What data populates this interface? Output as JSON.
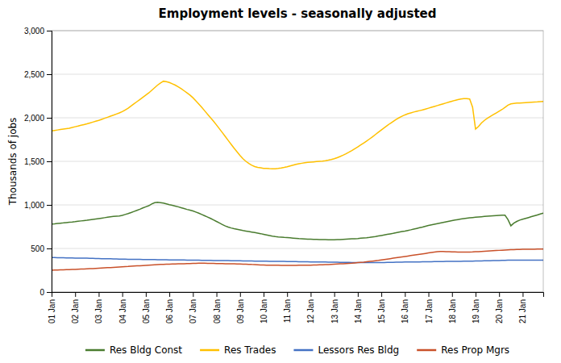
{
  "chart_data": {
    "type": "line",
    "title": "Employment levels - seasonally adjusted",
    "ylabel": "Thousands of jobs",
    "categories": [
      "01 Jan",
      null,
      null,
      null,
      null,
      null,
      null,
      null,
      "02 Jan",
      null,
      null,
      null,
      null,
      null,
      null,
      null,
      "03 Jan",
      null,
      null,
      null,
      null,
      null,
      null,
      null,
      "04 Jan",
      null,
      null,
      null,
      null,
      null,
      null,
      null,
      "05 Jan",
      null,
      null,
      null,
      null,
      null,
      null,
      null,
      "06 Jan",
      null,
      null,
      null,
      null,
      null,
      null,
      null,
      "07 Jan",
      null,
      null,
      null,
      null,
      null,
      null,
      null,
      "08 Jan",
      null,
      null,
      null,
      null,
      null,
      null,
      null,
      "09 Jan",
      null,
      null,
      null,
      null,
      null,
      null,
      null,
      "10 Jan",
      null,
      null,
      null,
      null,
      null,
      null,
      null,
      "11 Jan",
      null,
      null,
      null,
      null,
      null,
      null,
      null,
      "12 Jan",
      null,
      null,
      null,
      null,
      null,
      null,
      null,
      "13 Jan",
      null,
      null,
      null,
      null,
      null,
      null,
      null,
      "14 Jan",
      null,
      null,
      null,
      null,
      null,
      null,
      null,
      "15 Jan",
      null,
      null,
      null,
      null,
      null,
      null,
      null,
      "16 Jan",
      null,
      null,
      null,
      null,
      null,
      null,
      null,
      "17 Jan",
      null,
      null,
      null,
      null,
      null,
      null,
      null,
      "18 Jan",
      null,
      null,
      null,
      null,
      null,
      null,
      null,
      "19 Jan",
      null,
      null,
      null,
      null,
      null,
      null,
      null,
      "20 Jan",
      null,
      null,
      null,
      null,
      null,
      null,
      null,
      "21 Jan",
      null,
      null,
      null,
      null,
      null,
      null,
      null
    ],
    "ylim": [
      0,
      3000
    ],
    "yticks": [
      0,
      500,
      {
        "value": 1000,
        "label": "1,000"
      },
      {
        "value": 1500,
        "label": "1,500"
      },
      {
        "value": 2000,
        "label": "2,000"
      },
      {
        "value": 2500,
        "label": "2,500"
      },
      {
        "value": 3000,
        "label": "3,000"
      }
    ],
    "grid": true,
    "legend": "bottom",
    "series": [
      {
        "name": "Res Bldg Const",
        "color": "#4a7c2f",
        "values": [
          780,
          783,
          787,
          790,
          793,
          797,
          800,
          803,
          807,
          812,
          816,
          820,
          823,
          828,
          833,
          838,
          843,
          848,
          853,
          858,
          863,
          867,
          870,
          873,
          880,
          890,
          900,
          912,
          925,
          938,
          950,
          965,
          978,
          990,
          1010,
          1025,
          1030,
          1025,
          1020,
          1012,
          1003,
          995,
          987,
          978,
          968,
          958,
          948,
          940,
          930,
          918,
          905,
          890,
          875,
          860,
          845,
          828,
          810,
          793,
          775,
          758,
          745,
          735,
          727,
          720,
          713,
          706,
          700,
          694,
          688,
          682,
          676,
          670,
          663,
          656,
          649,
          642,
          637,
          633,
          630,
          627,
          625,
          622,
          619,
          616,
          613,
          611,
          609,
          607,
          606,
          605,
          604,
          603,
          602,
          601,
          600,
          600,
          600,
          601,
          602,
          604,
          606,
          608,
          610,
          612,
          614,
          617,
          620,
          623,
          627,
          632,
          637,
          643,
          649,
          655,
          661,
          667,
          673,
          680,
          687,
          694,
          700,
          707,
          714,
          722,
          730,
          738,
          746,
          755,
          763,
          771,
          778,
          785,
          792,
          799,
          806,
          813,
          820,
          826,
          832,
          837,
          842,
          847,
          851,
          855,
          858,
          861,
          864,
          867,
          870,
          873,
          875,
          877,
          879,
          881,
          882,
          832,
          760,
          790,
          810,
          825,
          835,
          845,
          855,
          865,
          875,
          885,
          895,
          905
        ]
      },
      {
        "name": "Res Trades",
        "color": "#ffc000",
        "values": [
          1850,
          1855,
          1860,
          1865,
          1870,
          1875,
          1880,
          1888,
          1897,
          1905,
          1914,
          1922,
          1930,
          1940,
          1950,
          1960,
          1970,
          1982,
          1994,
          2006,
          2018,
          2030,
          2043,
          2056,
          2070,
          2090,
          2110,
          2135,
          2160,
          2185,
          2210,
          2235,
          2260,
          2285,
          2315,
          2345,
          2375,
          2400,
          2420,
          2415,
          2405,
          2390,
          2375,
          2355,
          2335,
          2310,
          2285,
          2260,
          2230,
          2195,
          2158,
          2120,
          2080,
          2040,
          2000,
          1960,
          1918,
          1874,
          1830,
          1785,
          1740,
          1695,
          1650,
          1608,
          1567,
          1530,
          1500,
          1475,
          1455,
          1440,
          1430,
          1425,
          1420,
          1418,
          1416,
          1415,
          1415,
          1418,
          1423,
          1430,
          1438,
          1447,
          1456,
          1465,
          1472,
          1478,
          1483,
          1488,
          1491,
          1494,
          1497,
          1500,
          1503,
          1508,
          1514,
          1521,
          1530,
          1542,
          1555,
          1570,
          1587,
          1605,
          1624,
          1645,
          1666,
          1688,
          1710,
          1733,
          1757,
          1782,
          1808,
          1834,
          1860,
          1885,
          1910,
          1935,
          1958,
          1980,
          2000,
          2018,
          2033,
          2046,
          2056,
          2066,
          2074,
          2082,
          2090,
          2100,
          2110,
          2120,
          2130,
          2140,
          2150,
          2160,
          2170,
          2180,
          2190,
          2200,
          2208,
          2215,
          2220,
          2220,
          2215,
          2120,
          1870,
          1900,
          1940,
          1970,
          1995,
          2015,
          2035,
          2055,
          2075,
          2095,
          2120,
          2145,
          2160,
          2165,
          2168,
          2170,
          2172,
          2174,
          2176,
          2178,
          2180,
          2182,
          2185,
          2188
        ]
      },
      {
        "name": "Lessors Res Bldg",
        "color": "#4472c4",
        "values": [
          395,
          395,
          394,
          393,
          393,
          392,
          392,
          391,
          390,
          390,
          389,
          389,
          388,
          387,
          386,
          385,
          384,
          383,
          382,
          381,
          381,
          380,
          379,
          378,
          378,
          377,
          376,
          376,
          375,
          374,
          374,
          373,
          373,
          372,
          372,
          372,
          371,
          371,
          370,
          370,
          369,
          369,
          368,
          368,
          367,
          367,
          366,
          366,
          366,
          365,
          365,
          364,
          364,
          363,
          363,
          362,
          362,
          361,
          361,
          360,
          360,
          359,
          359,
          358,
          358,
          357,
          357,
          356,
          356,
          355,
          355,
          354,
          354,
          354,
          353,
          353,
          352,
          352,
          351,
          351,
          350,
          350,
          349,
          349,
          348,
          348,
          347,
          347,
          346,
          346,
          345,
          345,
          344,
          344,
          343,
          343,
          342,
          342,
          341,
          341,
          340,
          340,
          339,
          339,
          338,
          338,
          337,
          337,
          337,
          337,
          337,
          338,
          338,
          339,
          340,
          340,
          341,
          342,
          343,
          343,
          344,
          344,
          345,
          345,
          346,
          346,
          347,
          347,
          348,
          348,
          349,
          349,
          350,
          350,
          351,
          351,
          352,
          352,
          353,
          353,
          354,
          354,
          355,
          355,
          356,
          356,
          357,
          358,
          358,
          359,
          360,
          361,
          362,
          363,
          364,
          365,
          366,
          366,
          366,
          366,
          366,
          366,
          366,
          366,
          366,
          366,
          366,
          366
        ]
      },
      {
        "name": "Res Prop Mgrs",
        "color": "#c9512a",
        "values": [
          250,
          252,
          253,
          254,
          255,
          257,
          258,
          259,
          260,
          262,
          263,
          264,
          266,
          268,
          269,
          271,
          273,
          275,
          277,
          279,
          281,
          283,
          285,
          287,
          289,
          291,
          293,
          296,
          298,
          300,
          302,
          304,
          306,
          308,
          310,
          312,
          314,
          316,
          318,
          319,
          320,
          321,
          322,
          323,
          324,
          325,
          326,
          327,
          328,
          329,
          330,
          330,
          330,
          329,
          329,
          328,
          327,
          327,
          326,
          325,
          325,
          324,
          323,
          322,
          321,
          320,
          319,
          318,
          316,
          315,
          313,
          311,
          310,
          309,
          308,
          308,
          307,
          307,
          306,
          306,
          306,
          306,
          306,
          306,
          307,
          307,
          308,
          308,
          309,
          310,
          311,
          312,
          313,
          314,
          315,
          317,
          319,
          321,
          323,
          325,
          327,
          329,
          331,
          334,
          337,
          340,
          343,
          347,
          351,
          355,
          359,
          363,
          368,
          373,
          378,
          383,
          388,
          393,
          398,
          403,
          408,
          413,
          418,
          423,
          428,
          433,
          438,
          443,
          448,
          453,
          458,
          463,
          465,
          465,
          464,
          463,
          461,
          460,
          459,
          458,
          458,
          458,
          459,
          460,
          462,
          464,
          466,
          468,
          470,
          472,
          474,
          476,
          478,
          480,
          482,
          484,
          486,
          487,
          488,
          489,
          490,
          490,
          490,
          491,
          491,
          492,
          492,
          493
        ]
      }
    ]
  }
}
